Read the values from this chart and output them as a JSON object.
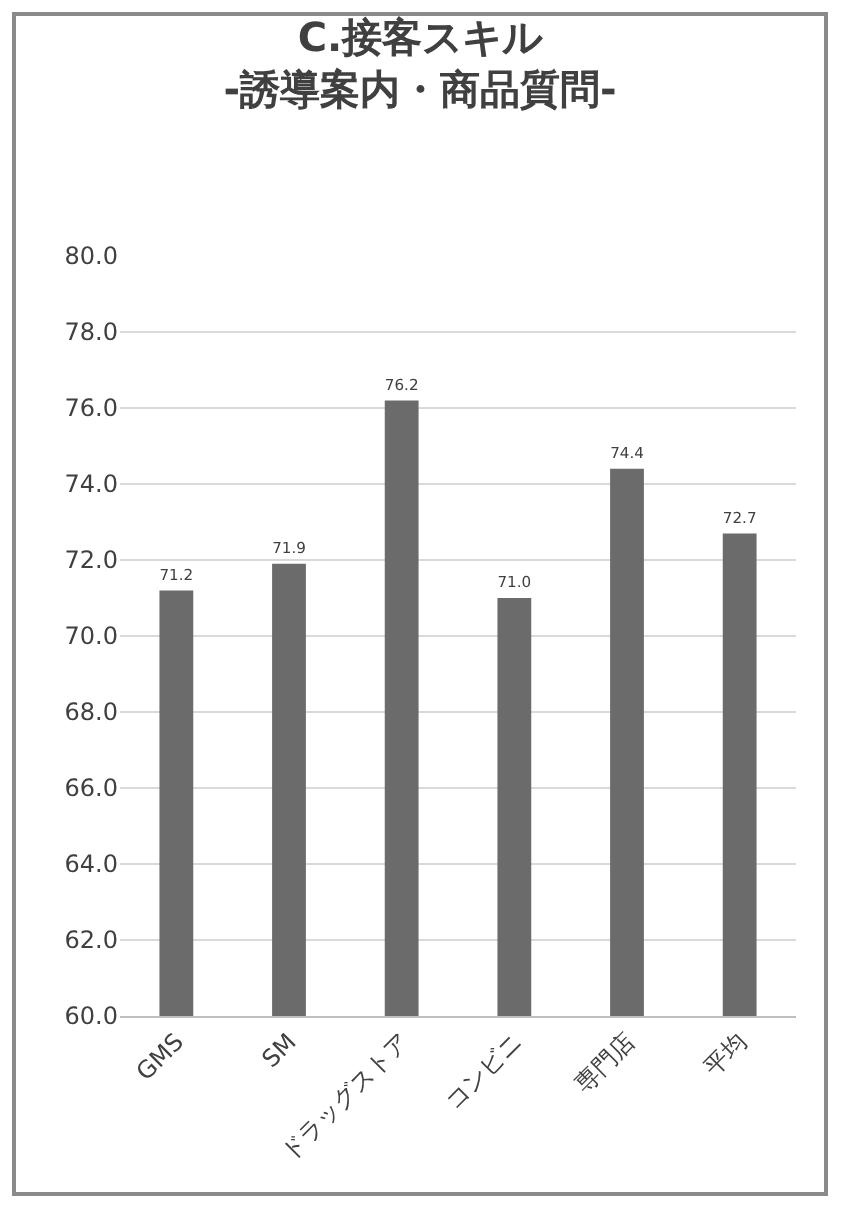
{
  "chart_data": {
    "type": "bar",
    "title": "C.接客スキル",
    "subtitle": "-誘導案内・商品質問-",
    "categories": [
      "GMS",
      "SM",
      "ドラッグストア",
      "コンビニ",
      "専門店",
      "平均"
    ],
    "values": [
      71.2,
      71.9,
      76.2,
      71.0,
      74.4,
      72.7
    ],
    "color": "#6b6b6b",
    "ylim": [
      60,
      80
    ],
    "yticks": [
      {
        "value": 60,
        "label": "60.0"
      },
      {
        "value": 62,
        "label": "62.0"
      },
      {
        "value": 64,
        "label": "64.0"
      },
      {
        "value": 66,
        "label": "66.0"
      },
      {
        "value": 68,
        "label": "68.0"
      },
      {
        "value": 70,
        "label": "70.0"
      },
      {
        "value": 72,
        "label": "72.0"
      },
      {
        "value": 74,
        "label": "74.0"
      },
      {
        "value": 76,
        "label": "76.0"
      },
      {
        "value": 78,
        "label": "78.0"
      },
      {
        "value": 80,
        "label": "80.0"
      }
    ],
    "value_labels": [
      "71.2",
      "71.9",
      "76.2",
      "71.0",
      "74.4",
      "72.7"
    ],
    "grid": "y",
    "legend": false
  }
}
